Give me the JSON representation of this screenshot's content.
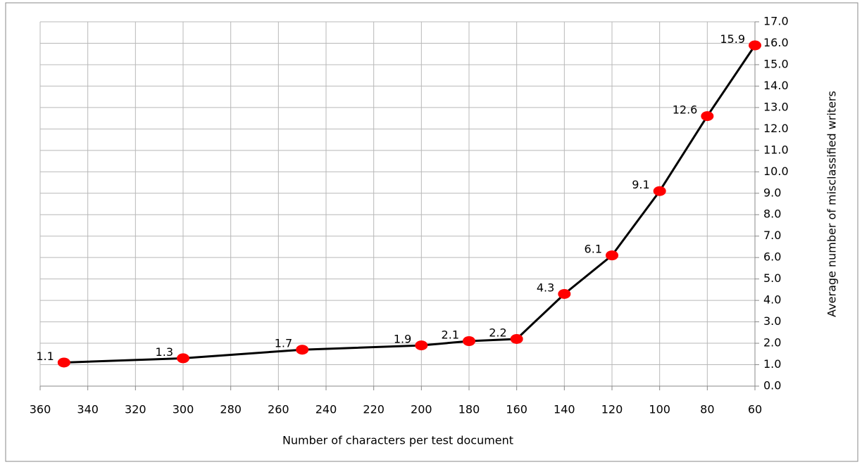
{
  "chart_data": {
    "type": "line",
    "xlabel": "Number of characters per test document",
    "ylabel": "Average number of misclassified writers",
    "x": [
      350,
      300,
      250,
      200,
      180,
      160,
      140,
      120,
      100,
      80,
      60
    ],
    "values": [
      1.1,
      1.3,
      1.7,
      1.9,
      2.1,
      2.2,
      4.3,
      6.1,
      9.1,
      12.6,
      15.9
    ],
    "color": "#000000",
    "marker_color": "#ff0000",
    "xlim": [
      360,
      60
    ],
    "xticks": [
      360,
      340,
      320,
      300,
      280,
      260,
      240,
      220,
      200,
      180,
      160,
      140,
      120,
      100,
      80,
      60
    ],
    "ylim": [
      0,
      17
    ],
    "yticks": [
      {
        "value": 0,
        "label": "0.0"
      },
      {
        "value": 1,
        "label": "1.0"
      },
      {
        "value": 2,
        "label": "2.0"
      },
      {
        "value": 3,
        "label": "3.0"
      },
      {
        "value": 4,
        "label": "4.0"
      },
      {
        "value": 5,
        "label": "5.0"
      },
      {
        "value": 6,
        "label": "6.0"
      },
      {
        "value": 7,
        "label": "7.0"
      },
      {
        "value": 8,
        "label": "8.0"
      },
      {
        "value": 9,
        "label": "9.0"
      },
      {
        "value": 10,
        "label": "10.0"
      },
      {
        "value": 11,
        "label": "11.0"
      },
      {
        "value": 12,
        "label": "12.0"
      },
      {
        "value": 13,
        "label": "13.0"
      },
      {
        "value": 14,
        "label": "14.0"
      },
      {
        "value": 15,
        "label": "15.0"
      },
      {
        "value": 16,
        "label": "16.0"
      },
      {
        "value": 17,
        "label": "17.0"
      }
    ],
    "grid": true
  }
}
